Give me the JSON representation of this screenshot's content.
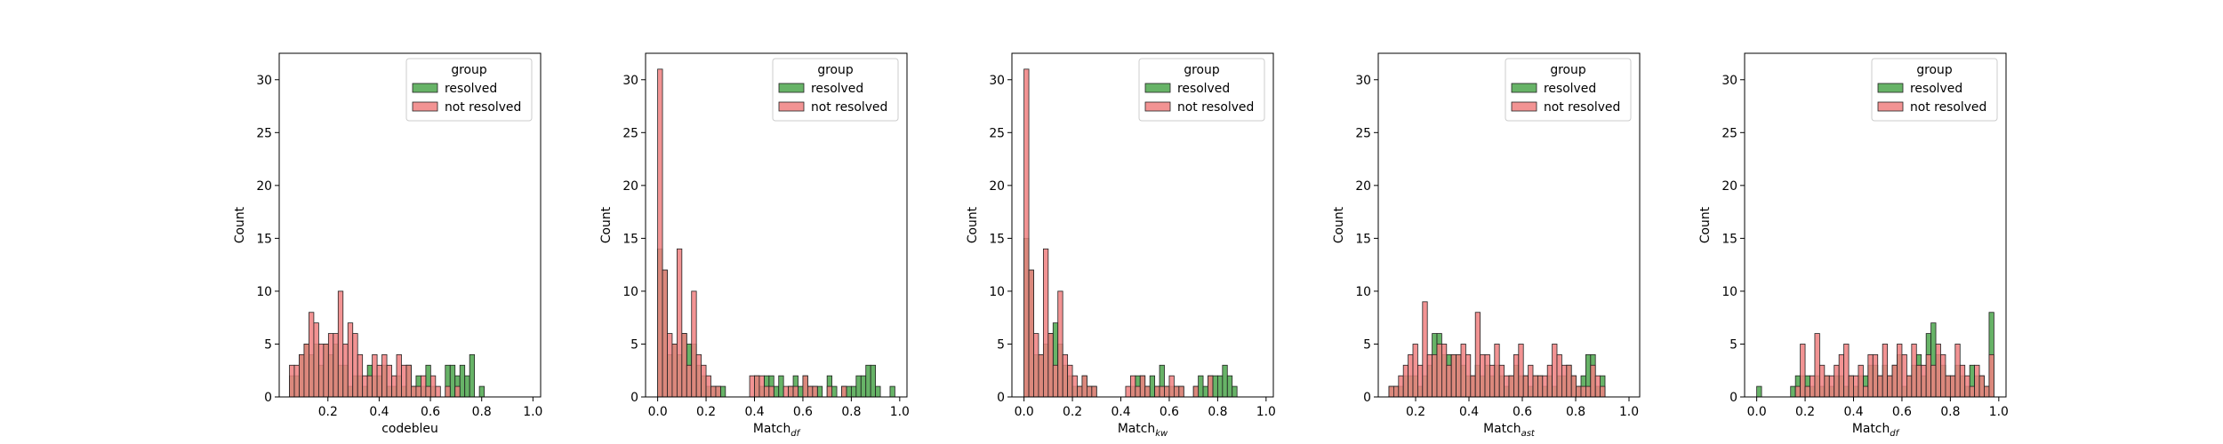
{
  "figure": {
    "background": "#ffffff"
  },
  "legend": {
    "title": "group",
    "entries": [
      {
        "label": "resolved",
        "color": "#4ca64c"
      },
      {
        "label": "not resolved",
        "color": "#f08080"
      }
    ],
    "placement": "upper right"
  },
  "colors": {
    "resolved": "#4ca64c",
    "not_resolved": "#f08080",
    "overlap": "#6b6b1e"
  },
  "chart_data": [
    {
      "type": "histogram",
      "title": "",
      "xlabel": "codebleu",
      "xlabel_sub": "",
      "ylabel": "Count",
      "ylim": [
        0,
        32.5
      ],
      "yticks": [
        0,
        5,
        10,
        15,
        20,
        25,
        30
      ],
      "xlim": [
        0.01,
        1.03
      ],
      "xticks": [
        0.2,
        0.4,
        0.6,
        0.8,
        1.0
      ],
      "xtick_labels": [
        "0.2",
        "0.4",
        "0.6",
        "0.8",
        "1.0"
      ],
      "bin_start": 0.05,
      "bin_width": 0.019,
      "grid": false,
      "series": [
        {
          "name": "resolved",
          "values": [
            2,
            2,
            4,
            5,
            4,
            5,
            3,
            5,
            4,
            5,
            3,
            3,
            1,
            2,
            2,
            1,
            3,
            2,
            2,
            3,
            1,
            1,
            2,
            1,
            3,
            1,
            2,
            1,
            3,
            1,
            0,
            0,
            3,
            3,
            2,
            3,
            2,
            4,
            0,
            1,
            0,
            0,
            0,
            0,
            0,
            0,
            0,
            0,
            0,
            0
          ]
        },
        {
          "name": "not resolved",
          "values": [
            3,
            3,
            4,
            5,
            8,
            7,
            5,
            5,
            6,
            6,
            10,
            5,
            7,
            6,
            4,
            2,
            2,
            4,
            3,
            4,
            3,
            2,
            4,
            3,
            3,
            1,
            1,
            2,
            1,
            2,
            1,
            0,
            1,
            0,
            1,
            0,
            0,
            0,
            0,
            0,
            0,
            0,
            0,
            0,
            0,
            0,
            0,
            0,
            0,
            0
          ]
        }
      ]
    },
    {
      "type": "histogram",
      "title": "",
      "xlabel": "Match",
      "xlabel_sub": "df",
      "ylabel": "Count",
      "ylim": [
        0,
        32.5
      ],
      "yticks": [
        0,
        5,
        10,
        15,
        20,
        25,
        30
      ],
      "xlim": [
        -0.05,
        1.03
      ],
      "xticks": [
        0.0,
        0.2,
        0.4,
        0.6,
        0.8,
        1.0
      ],
      "xtick_labels": [
        "0.0",
        "0.2",
        "0.4",
        "0.6",
        "0.8",
        "1.0"
      ],
      "bin_start": 0.0,
      "bin_width": 0.02,
      "grid": false,
      "series": [
        {
          "name": "resolved",
          "values": [
            14,
            12,
            4,
            5,
            4,
            6,
            5,
            5,
            3,
            2,
            1,
            1,
            1,
            1,
            0,
            0,
            0,
            0,
            0,
            0,
            2,
            1,
            2,
            2,
            1,
            2,
            0,
            1,
            2,
            1,
            2,
            1,
            1,
            1,
            0,
            2,
            1,
            0,
            1,
            1,
            1,
            2,
            2,
            3,
            3,
            1,
            0,
            0,
            1,
            0,
            0
          ]
        },
        {
          "name": "not resolved",
          "values": [
            31,
            12,
            6,
            5,
            14,
            6,
            3,
            10,
            4,
            3,
            2,
            1,
            1,
            0,
            0,
            0,
            0,
            0,
            0,
            2,
            2,
            2,
            1,
            1,
            0,
            0,
            1,
            1,
            1,
            0,
            2,
            1,
            1,
            0,
            0,
            1,
            0,
            0,
            1,
            0,
            0,
            0,
            0,
            0,
            0,
            0,
            0,
            0,
            0,
            0,
            0
          ]
        }
      ]
    },
    {
      "type": "histogram",
      "title": "",
      "xlabel": "Match",
      "xlabel_sub": "kw",
      "ylabel": "Count",
      "ylim": [
        0,
        32.5
      ],
      "yticks": [
        0,
        5,
        10,
        15,
        20,
        25,
        30
      ],
      "xlim": [
        -0.05,
        1.03
      ],
      "xticks": [
        0.0,
        0.2,
        0.4,
        0.6,
        0.8,
        1.0
      ],
      "xtick_labels": [
        "0.0",
        "0.2",
        "0.4",
        "0.6",
        "0.8",
        "1.0"
      ],
      "bin_start": 0.0,
      "bin_width": 0.02,
      "grid": false,
      "series": [
        {
          "name": "resolved",
          "values": [
            15,
            12,
            4,
            4,
            5,
            6,
            7,
            5,
            3,
            2,
            1,
            1,
            2,
            1,
            1,
            0,
            0,
            0,
            0,
            0,
            0,
            0,
            1,
            2,
            2,
            1,
            2,
            1,
            3,
            1,
            1,
            1,
            1,
            0,
            0,
            1,
            2,
            1,
            2,
            2,
            2,
            3,
            2,
            1,
            0,
            0,
            0,
            0,
            0,
            0,
            0
          ]
        },
        {
          "name": "not resolved",
          "values": [
            31,
            12,
            6,
            4,
            14,
            6,
            3,
            10,
            4,
            3,
            2,
            1,
            2,
            1,
            1,
            0,
            0,
            0,
            0,
            0,
            0,
            1,
            2,
            1,
            2,
            1,
            0,
            1,
            1,
            1,
            2,
            1,
            1,
            0,
            0,
            1,
            0,
            0,
            2,
            0,
            0,
            0,
            0,
            0,
            0,
            0,
            0,
            0,
            0,
            0,
            0
          ]
        }
      ]
    },
    {
      "type": "histogram",
      "title": "",
      "xlabel": "Match",
      "xlabel_sub": "ast",
      "ylabel": "Count",
      "ylim": [
        0,
        32.5
      ],
      "yticks": [
        0,
        5,
        10,
        15,
        20,
        25,
        30
      ],
      "xlim": [
        0.06,
        1.04
      ],
      "xticks": [
        0.2,
        0.4,
        0.6,
        0.8,
        1.0
      ],
      "xtick_labels": [
        "0.2",
        "0.4",
        "0.6",
        "0.8",
        "1.0"
      ],
      "bin_start": 0.1,
      "bin_width": 0.018,
      "grid": false,
      "series": [
        {
          "name": "resolved",
          "values": [
            1,
            1,
            1,
            2,
            2,
            2,
            1,
            2,
            3,
            6,
            6,
            4,
            4,
            4,
            4,
            3,
            2,
            2,
            3,
            2,
            3,
            2,
            3,
            2,
            1,
            2,
            3,
            2,
            2,
            1,
            2,
            2,
            1,
            2,
            1,
            2,
            2,
            3,
            2,
            1,
            2,
            4,
            4,
            1,
            2
          ]
        },
        {
          "name": "not resolved",
          "values": [
            1,
            1,
            2,
            3,
            4,
            5,
            3,
            9,
            4,
            4,
            5,
            5,
            3,
            4,
            4,
            5,
            4,
            2,
            8,
            4,
            4,
            3,
            5,
            3,
            2,
            2,
            4,
            5,
            2,
            3,
            2,
            2,
            2,
            3,
            5,
            4,
            3,
            3,
            2,
            1,
            1,
            1,
            3,
            2,
            1
          ]
        }
      ]
    },
    {
      "type": "histogram",
      "title": "",
      "xlabel": "Match",
      "xlabel_sub": "df",
      "ylabel": "Count",
      "ylim": [
        0,
        32.5
      ],
      "yticks": [
        0,
        5,
        10,
        15,
        20,
        25,
        30
      ],
      "xlim": [
        -0.05,
        1.03
      ],
      "xticks": [
        0.0,
        0.2,
        0.4,
        0.6,
        0.8,
        1.0
      ],
      "xtick_labels": [
        "0.0",
        "0.2",
        "0.4",
        "0.6",
        "0.8",
        "1.0"
      ],
      "bin_start": 0.0,
      "bin_width": 0.02,
      "grid": false,
      "series": [
        {
          "name": "resolved",
          "values": [
            1,
            0,
            0,
            0,
            0,
            0,
            0,
            1,
            2,
            2,
            2,
            1,
            2,
            1,
            2,
            1,
            2,
            2,
            1,
            2,
            1,
            2,
            2,
            3,
            3,
            2,
            3,
            2,
            3,
            4,
            1,
            2,
            3,
            4,
            2,
            6,
            7,
            4,
            3,
            2,
            2,
            3,
            2,
            1,
            3,
            2,
            2,
            1,
            8,
            0
          ]
        },
        {
          "name": "not resolved",
          "values": [
            0,
            0,
            0,
            0,
            0,
            0,
            0,
            0,
            1,
            5,
            1,
            2,
            6,
            3,
            2,
            2,
            3,
            4,
            5,
            2,
            2,
            3,
            1,
            4,
            4,
            2,
            5,
            2,
            3,
            5,
            4,
            2,
            5,
            3,
            3,
            4,
            3,
            5,
            4,
            2,
            2,
            5,
            3,
            2,
            1,
            3,
            2,
            1,
            4,
            0
          ]
        }
      ]
    }
  ]
}
